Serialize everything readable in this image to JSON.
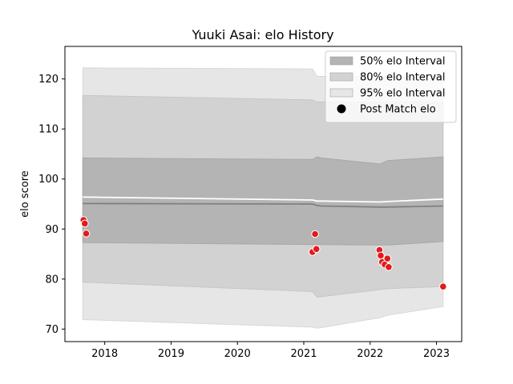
{
  "chart_data": {
    "type": "area",
    "title": "Yuuki Asai: elo History",
    "xlabel": "",
    "ylabel": "elo score",
    "xlim": [
      2017.4,
      2023.38
    ],
    "ylim": [
      67.5,
      126.5
    ],
    "x_ticks": [
      2018,
      2019,
      2020,
      2021,
      2022,
      2023
    ],
    "x_tick_labels": [
      "2018",
      "2019",
      "2020",
      "2021",
      "2022",
      "2023"
    ],
    "y_ticks": [
      70,
      80,
      90,
      100,
      110,
      120
    ],
    "y_tick_labels": [
      "70",
      "80",
      "90",
      "100",
      "110",
      "120"
    ],
    "grid": false,
    "legend_position": "top-right",
    "colors": {
      "band50": "#b4b4b4",
      "band80": "#d2d2d2",
      "band95": "#e6e6e6",
      "mean_line": "#808080",
      "upper_line": "#ffffff",
      "points": "#e31a1c"
    },
    "bands": {
      "x": [
        2017.67,
        2021.13,
        2021.2,
        2021.27,
        2022.15,
        2022.27,
        2023.1
      ],
      "p95_upper": [
        122.2,
        122.0,
        120.5,
        120.5,
        120.5,
        120.5,
        120.5
      ],
      "p80_upper": [
        116.7,
        115.8,
        115.4,
        115.4,
        115.4,
        115.4,
        115.4
      ],
      "p50_upper": [
        104.2,
        103.9,
        104.4,
        104.2,
        103.0,
        103.7,
        104.4
      ],
      "p50_lower": [
        87.3,
        86.9,
        86.9,
        86.9,
        86.8,
        86.8,
        87.5
      ],
      "p80_lower": [
        79.4,
        77.5,
        76.4,
        76.5,
        77.9,
        78.1,
        78.5
      ],
      "p95_lower": [
        71.9,
        70.4,
        70.2,
        70.3,
        72.3,
        72.8,
        74.5
      ],
      "mean": [
        95.1,
        95.0,
        94.7,
        94.6,
        94.4,
        94.4,
        94.6
      ],
      "upper_line": [
        96.4,
        95.8,
        95.6,
        95.6,
        95.4,
        95.5,
        96.0
      ]
    },
    "series": [
      {
        "name": "Post Match elo",
        "points": [
          {
            "x": 2017.68,
            "y": 91.8
          },
          {
            "x": 2017.7,
            "y": 91.1
          },
          {
            "x": 2017.72,
            "y": 89.1
          },
          {
            "x": 2021.13,
            "y": 85.4
          },
          {
            "x": 2021.17,
            "y": 89.0
          },
          {
            "x": 2021.19,
            "y": 86.0
          },
          {
            "x": 2022.14,
            "y": 85.8
          },
          {
            "x": 2022.16,
            "y": 84.7
          },
          {
            "x": 2022.18,
            "y": 83.4
          },
          {
            "x": 2022.22,
            "y": 82.9
          },
          {
            "x": 2022.26,
            "y": 84.1
          },
          {
            "x": 2022.28,
            "y": 82.4
          },
          {
            "x": 2023.1,
            "y": 78.5
          }
        ]
      }
    ],
    "legend": [
      {
        "label": "50% elo Interval",
        "kind": "patch",
        "color": "#b4b4b4"
      },
      {
        "label": "80% elo Interval",
        "kind": "patch",
        "color": "#d2d2d2"
      },
      {
        "label": "95% elo Interval",
        "kind": "patch",
        "color": "#e6e6e6"
      },
      {
        "label": "Post Match elo",
        "kind": "marker",
        "color": "#000000"
      }
    ]
  }
}
